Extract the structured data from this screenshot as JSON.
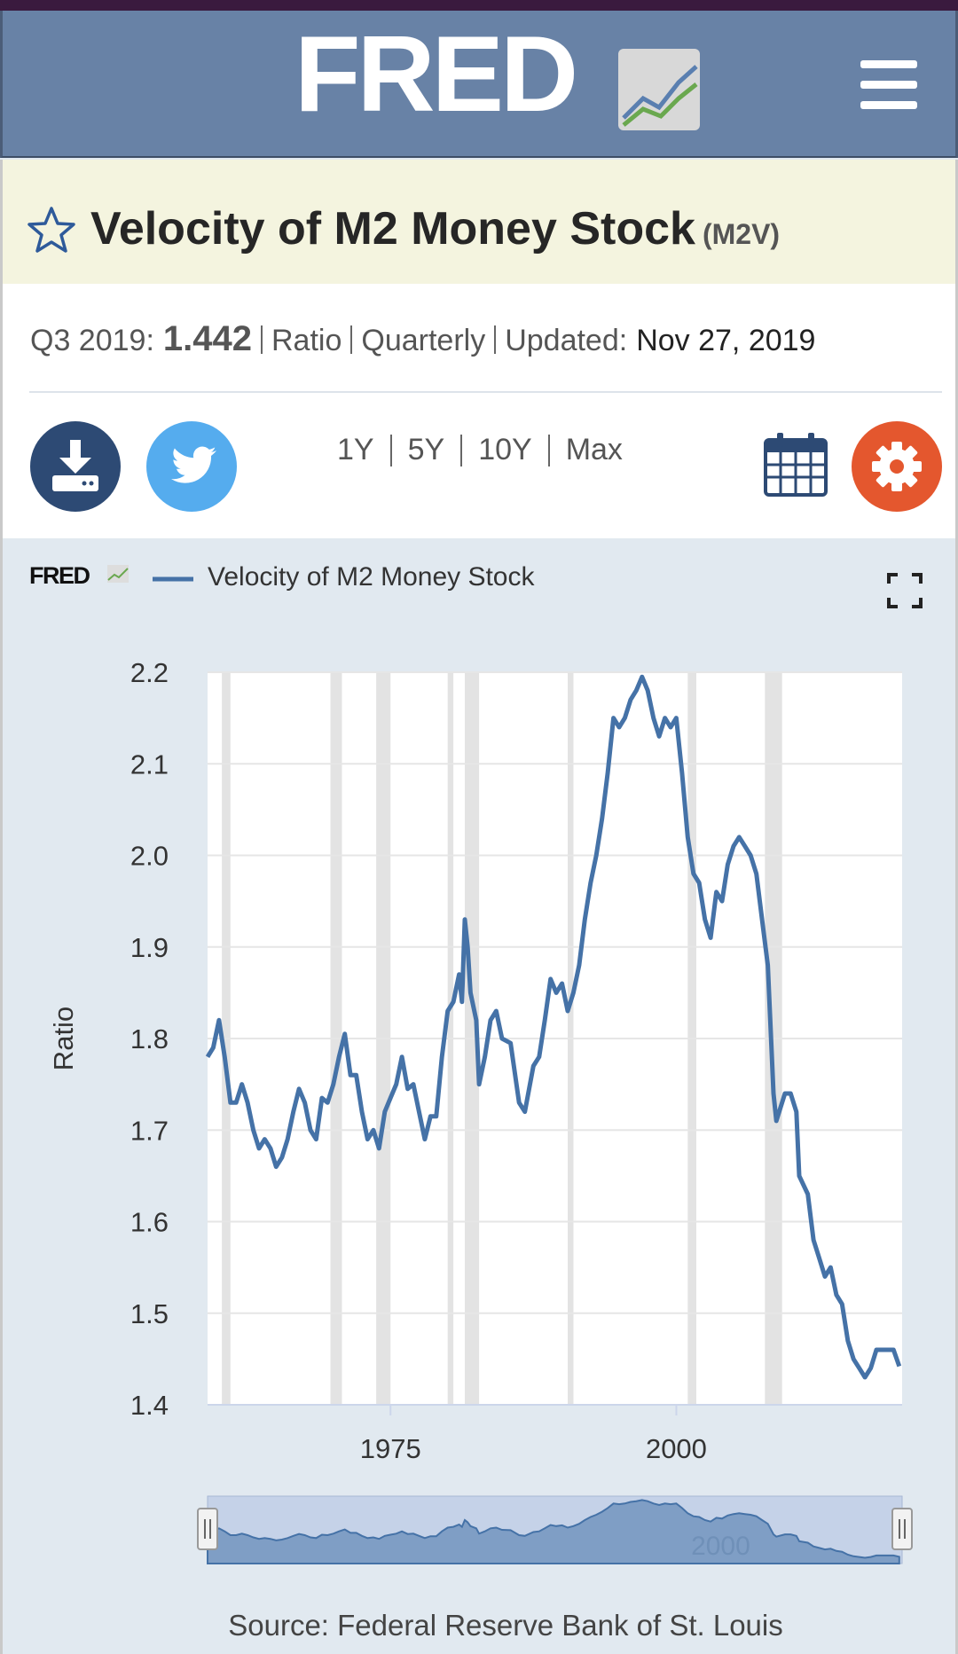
{
  "header": {
    "logo": "FRED"
  },
  "series_title": {
    "title": "Velocity of M2 Money Stock",
    "code": "(M2V)"
  },
  "meta": {
    "date_label": "Q3 2019:",
    "value": "1.442",
    "units": "Ratio",
    "frequency": "Quarterly",
    "updated_label": "Updated:",
    "updated": "Nov 27, 2019"
  },
  "ranges": [
    "1Y",
    "5Y",
    "10Y",
    "Max"
  ],
  "chart_data": {
    "type": "line",
    "y_label": "Ratio",
    "x": [
      1959.0,
      1959.5,
      1960.0,
      1960.5,
      1961.0,
      1961.5,
      1962.0,
      1962.5,
      1963.0,
      1963.5,
      1964.0,
      1964.5,
      1965.0,
      1965.5,
      1966.0,
      1966.5,
      1967.0,
      1967.5,
      1968.0,
      1968.5,
      1969.0,
      1969.5,
      1970.0,
      1970.5,
      1971.0,
      1971.5,
      1972.0,
      1972.5,
      1973.0,
      1973.5,
      1974.0,
      1974.5,
      1975.0,
      1975.5,
      1976.0,
      1976.5,
      1977.0,
      1977.5,
      1978.0,
      1978.5,
      1979.0,
      1979.5,
      1980.0,
      1980.5,
      1981.0,
      1981.25,
      1981.5,
      1981.75,
      1982.0,
      1982.5,
      1982.75,
      1983.25,
      1983.75,
      1984.25,
      1984.75,
      1985.5,
      1986.25,
      1986.75,
      1987.5,
      1988.0,
      1988.5,
      1989.0,
      1989.5,
      1990.0,
      1990.5,
      1991.0,
      1991.5,
      1992.0,
      1992.5,
      1993.0,
      1993.5,
      1994.0,
      1994.5,
      1995.0,
      1995.5,
      1996.0,
      1996.5,
      1997.0,
      1997.5,
      1998.0,
      1998.5,
      1999.0,
      1999.5,
      2000.0,
      2000.5,
      2001.0,
      2001.5,
      2002.0,
      2002.5,
      2003.0,
      2003.5,
      2004.0,
      2004.5,
      2005.0,
      2005.5,
      2006.0,
      2006.5,
      2007.0,
      2007.5,
      2008.0,
      2008.5,
      2008.75,
      2009.5,
      2010.0,
      2010.5,
      2010.75,
      2011.5,
      2012.0,
      2012.5,
      2013.0,
      2013.5,
      2014.0,
      2014.5,
      2015.0,
      2015.5,
      2016.0,
      2016.5,
      2017.0,
      2017.5,
      2018.0,
      2018.5,
      2019.0,
      2019.5
    ],
    "series": [
      {
        "name": "Velocity of M2 Money Stock",
        "color": "#4572a7",
        "values": [
          1.78,
          1.79,
          1.82,
          1.78,
          1.73,
          1.73,
          1.75,
          1.73,
          1.7,
          1.68,
          1.69,
          1.68,
          1.66,
          1.67,
          1.69,
          1.72,
          1.745,
          1.73,
          1.7,
          1.69,
          1.735,
          1.73,
          1.75,
          1.78,
          1.805,
          1.76,
          1.76,
          1.72,
          1.69,
          1.7,
          1.68,
          1.72,
          1.735,
          1.75,
          1.78,
          1.745,
          1.75,
          1.72,
          1.69,
          1.715,
          1.715,
          1.78,
          1.83,
          1.84,
          1.87,
          1.84,
          1.93,
          1.9,
          1.85,
          1.82,
          1.75,
          1.78,
          1.82,
          1.83,
          1.8,
          1.795,
          1.73,
          1.72,
          1.77,
          1.78,
          1.82,
          1.865,
          1.85,
          1.86,
          1.83,
          1.85,
          1.88,
          1.93,
          1.97,
          2.0,
          2.04,
          2.09,
          2.15,
          2.14,
          2.15,
          2.17,
          2.18,
          2.195,
          2.18,
          2.15,
          2.13,
          2.15,
          2.14,
          2.15,
          2.09,
          2.02,
          1.98,
          1.97,
          1.93,
          1.91,
          1.96,
          1.95,
          1.99,
          2.01,
          2.02,
          2.01,
          2.0,
          1.98,
          1.93,
          1.88,
          1.74,
          1.71,
          1.74,
          1.74,
          1.72,
          1.65,
          1.63,
          1.58,
          1.56,
          1.54,
          1.55,
          1.52,
          1.51,
          1.47,
          1.45,
          1.44,
          1.43,
          1.44,
          1.46,
          1.46,
          1.46,
          1.46,
          1.442
        ]
      }
    ],
    "xlim": [
      1959,
      2019.75
    ],
    "xticks": [
      1975,
      2000
    ],
    "ylim": [
      1.4,
      2.2
    ],
    "yticks": [
      1.4,
      1.5,
      1.6,
      1.7,
      1.8,
      1.9,
      {
        "value": 2,
        "label": "2.0"
      },
      2.1,
      2.2
    ],
    "grid": true,
    "recessions": [
      [
        1960.25,
        1961.0
      ],
      [
        1969.75,
        1970.75
      ],
      [
        1973.75,
        1975.0
      ],
      [
        1980.0,
        1980.5
      ],
      [
        1981.5,
        1982.75
      ],
      [
        1990.5,
        1991.0
      ],
      [
        2001.0,
        2001.75
      ],
      [
        2007.75,
        2009.25
      ]
    ],
    "recession_color": "#e3e3e3"
  },
  "source": "Source: Federal Reserve Bank of St. Louis"
}
